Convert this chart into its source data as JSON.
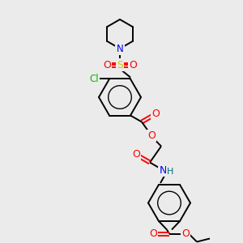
{
  "bg_color": "#ebebeb",
  "colors": {
    "C": "#000000",
    "N": "#0000ff",
    "O": "#ff0000",
    "S": "#cccc00",
    "Cl": "#00bb00",
    "H": "#007070"
  },
  "figsize": [
    3.0,
    3.0
  ],
  "dpi": 100
}
